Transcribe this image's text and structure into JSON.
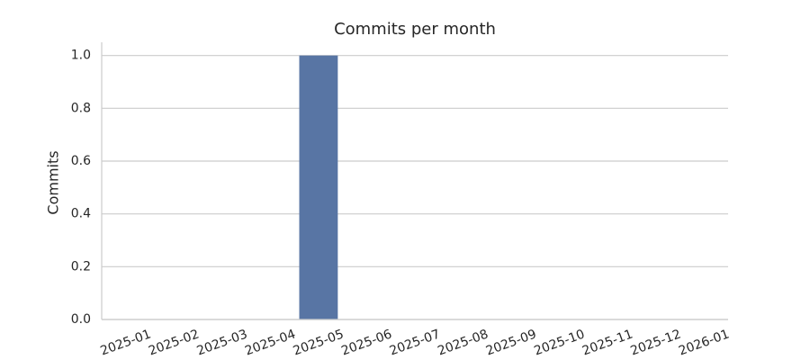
{
  "chart_data": {
    "type": "bar",
    "title": "Commits per month",
    "y_label": "Commits",
    "categories": [
      "2025-01",
      "2025-02",
      "2025-03",
      "2025-04",
      "2025-05",
      "2025-06",
      "2025-07",
      "2025-08",
      "2025-09",
      "2025-10",
      "2025-11",
      "2025-12",
      "2026-01"
    ],
    "values": [
      0,
      0,
      0,
      0,
      1,
      0,
      0,
      0,
      0,
      0,
      0,
      0,
      0
    ],
    "color": "#5875a4",
    "ylim": [
      0,
      1.05
    ],
    "yticks": [
      {
        "value": 0,
        "label": "0.0"
      },
      0.2,
      0.4,
      0.6,
      0.8,
      {
        "value": 1,
        "label": "1.0"
      }
    ],
    "grid": true
  }
}
